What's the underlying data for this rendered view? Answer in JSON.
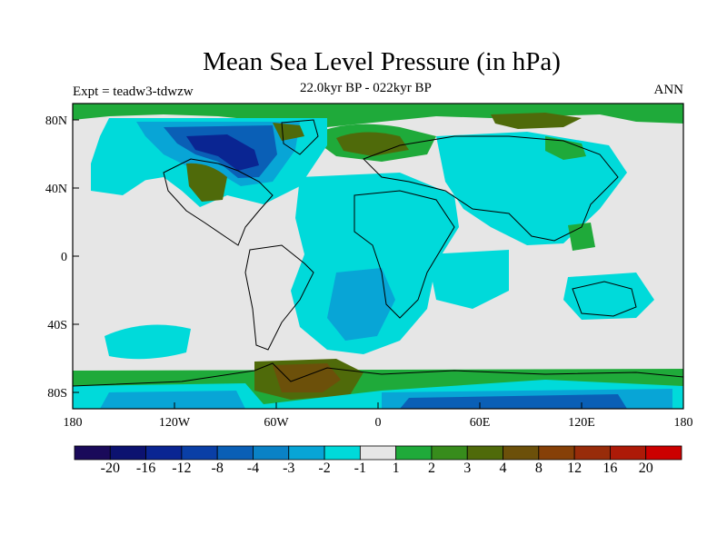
{
  "title": "Mean Sea Level Pressure (in hPa)",
  "experiment": "Expt = teadw3-tdwzw",
  "period": "22.0kyr BP - 022kyr BP",
  "season": "ANN",
  "x_ticks": [
    "180",
    "120W",
    "60W",
    "0",
    "60E",
    "120E",
    "180"
  ],
  "y_ticks": [
    "80N",
    "40N",
    "0",
    "40S",
    "80S"
  ],
  "colorbar": {
    "colors": [
      "#1a0a5a",
      "#0c1270",
      "#0a2592",
      "#0a3fa6",
      "#0a5fb6",
      "#0a82c6",
      "#08a5d6",
      "#00dada",
      "#e6e6e6",
      "#1faa3a",
      "#378c1c",
      "#4f6a0a",
      "#6c500a",
      "#864008",
      "#982c0a",
      "#ad1a08",
      "#cc0000"
    ],
    "labels": [
      "-20",
      "-16",
      "-12",
      "-8",
      "-4",
      "-3",
      "-2",
      "-1",
      "1",
      "2",
      "3",
      "4",
      "8",
      "12",
      "16",
      "20"
    ]
  },
  "colors": {
    "neutral": "#e6e6e6",
    "light_neg": "#00dada",
    "mid_neg": "#08a5d6",
    "deep_neg": "#0a5fb6",
    "darkest_neg": "#0a2592",
    "pos_green": "#1faa3a",
    "pos_olive": "#4f6a0a",
    "pos_brown": "#6c500a"
  }
}
